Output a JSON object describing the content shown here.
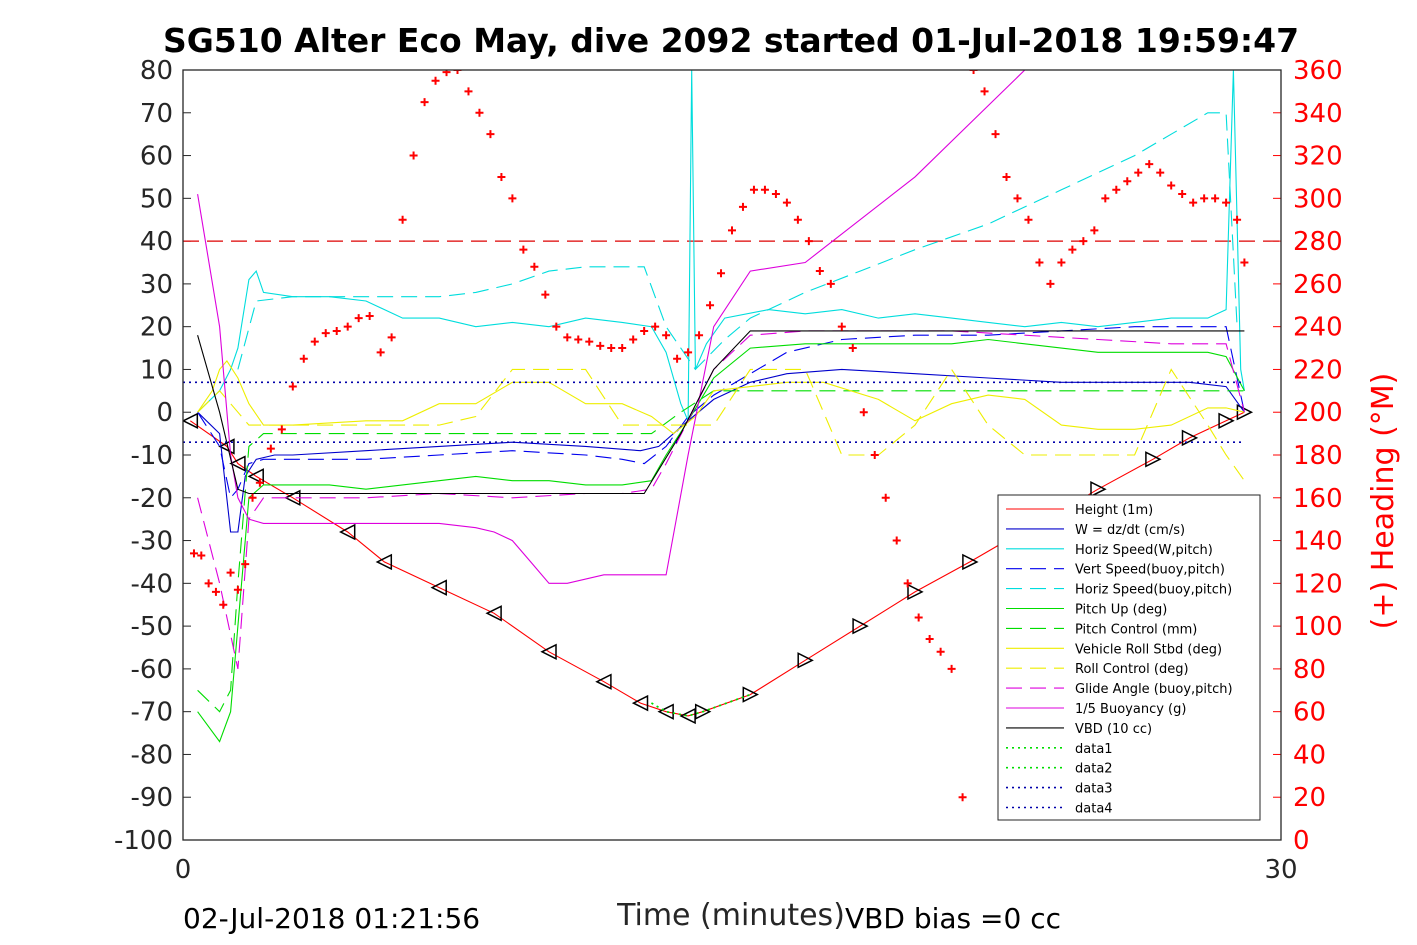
{
  "chart_data": {
    "type": "line",
    "title": "SG510 Alter Eco May, dive 2092 started 01-Jul-2018 19:59:47",
    "xlabel": "Time (minutes)",
    "ylabel_right": "(+) Heading (°M)",
    "footer_left": "02-Jul-2018 01:21:56",
    "footer_right": "VBD bias =0 cc",
    "xlim": [
      0,
      30
    ],
    "ylim": [
      -100,
      80
    ],
    "ylim_right": [
      0,
      360
    ],
    "x_ticks": [
      "0",
      "30"
    ],
    "y_ticks": [
      "80",
      "70",
      "60",
      "50",
      "40",
      "30",
      "20",
      "10",
      "0",
      "-10",
      "-20",
      "-30",
      "-40",
      "-50",
      "-60",
      "-70",
      "-80",
      "-90",
      "-100"
    ],
    "y_right_ticks": [
      "360",
      "340",
      "320",
      "300",
      "280",
      "260",
      "240",
      "220",
      "200",
      "180",
      "160",
      "140",
      "120",
      "100",
      "80",
      "60",
      "40",
      "20",
      "0"
    ],
    "grid": false,
    "legend_position": "bottom-right",
    "series": [
      {
        "name": "Height (1m)",
        "color": "#ff0000",
        "dash": "solid",
        "marker": "triangle",
        "x": [
          0.2,
          1.2,
          1.5,
          2.0,
          3.0,
          4.5,
          5.5,
          7.0,
          8.5,
          10.0,
          11.5,
          12.5,
          13.2,
          13.8,
          14.2,
          15.5,
          17.0,
          18.5,
          20.0,
          21.5,
          22.5,
          24.0,
          25.0,
          26.5,
          27.5,
          28.5,
          29.0
        ],
        "y": [
          -2,
          -8,
          -12,
          -15,
          -20,
          -28,
          -35,
          -41,
          -47,
          -56,
          -63,
          -68,
          -70,
          -71,
          -70,
          -66,
          -58,
          -50,
          -42,
          -35,
          -30,
          -23,
          -18,
          -11,
          -6,
          -2,
          0
        ]
      },
      {
        "name": "W = dz/dt (cm/s)",
        "color": "#0000cc",
        "dash": "solid",
        "x": [
          0.4,
          1.0,
          1.3,
          1.5,
          1.7,
          2.0,
          2.5,
          3.0,
          5.0,
          7.0,
          9.0,
          11.0,
          12.5,
          13.0,
          13.8,
          14.5,
          15.5,
          16.5,
          18.0,
          20.0,
          22.0,
          24.0,
          26.0,
          27.5,
          28.5,
          29.0
        ],
        "y": [
          0,
          -5,
          -28,
          -28,
          -15,
          -11,
          -10,
          -10,
          -9,
          -8,
          -7,
          -8,
          -9,
          -8,
          -2,
          3,
          7,
          9,
          10,
          9,
          8,
          7,
          7,
          7,
          6,
          0
        ]
      },
      {
        "name": "Horiz Speed(W,pitch)",
        "color": "#00dddd",
        "dash": "solid",
        "x": [
          0.4,
          1.0,
          1.3,
          1.5,
          1.8,
          2.0,
          2.2,
          3.0,
          4.0,
          5.0,
          6.0,
          7.0,
          8.0,
          9.0,
          10.0,
          11.0,
          12.0,
          12.8,
          13.2,
          13.6,
          13.8,
          13.9,
          14.0,
          14.3,
          14.8,
          16.0,
          17.0,
          18.0,
          19.0,
          20.0,
          21.0,
          22.0,
          23.0,
          24.0,
          25.0,
          26.0,
          27.0,
          28.0,
          28.5,
          28.7,
          28.9,
          29.0
        ],
        "y": [
          0,
          5,
          10,
          15,
          31,
          33,
          28,
          27,
          27,
          26,
          22,
          22,
          20,
          21,
          20,
          22,
          21,
          20,
          14,
          2,
          -2,
          80,
          10,
          16,
          22,
          24,
          23,
          24,
          22,
          23,
          22,
          21,
          20,
          21,
          20,
          21,
          22,
          22,
          24,
          80,
          10,
          5
        ]
      },
      {
        "name": "Vert Speed(buoy,pitch)",
        "color": "#0000ee",
        "dash": "dashed",
        "x": [
          0.4,
          1.0,
          1.3,
          1.5,
          1.8,
          2.2,
          3.0,
          5.0,
          7.0,
          9.0,
          11.0,
          12.0,
          12.6,
          13.2,
          13.8,
          14.5,
          15.5,
          16.5,
          18.0,
          20.0,
          22.0,
          24.0,
          26.0,
          27.5,
          28.5,
          29.0
        ],
        "y": [
          0,
          -8,
          -20,
          -18,
          -12,
          -11,
          -11,
          -11,
          -10,
          -9,
          -10,
          -11,
          -12,
          -8,
          -1,
          4,
          9,
          14,
          17,
          18,
          18,
          19,
          20,
          20,
          20,
          0
        ]
      },
      {
        "name": "Horiz Speed(buoy,pitch)",
        "color": "#00dddd",
        "dash": "dashed",
        "x": [
          1.5,
          2.0,
          3.0,
          5.0,
          7.0,
          8.0,
          9.0,
          10.0,
          11.0,
          12.0,
          12.6,
          13.2,
          14.0,
          14.8,
          15.5,
          17.0,
          18.5,
          20.0,
          22.0,
          24.0,
          26.0,
          27.0,
          28.0,
          28.5,
          28.8
        ],
        "y": [
          10,
          26,
          27,
          27,
          27,
          28,
          30,
          33,
          34,
          34,
          34,
          20,
          10,
          17,
          22,
          28,
          33,
          38,
          44,
          52,
          60,
          65,
          70,
          70,
          20
        ]
      },
      {
        "name": "Pitch Up (deg)",
        "color": "#00dd00",
        "dash": "solid",
        "x": [
          0.4,
          1.0,
          1.3,
          1.5,
          1.8,
          2.2,
          3.0,
          4.0,
          5.0,
          6.0,
          7.0,
          8.0,
          9.0,
          10.0,
          11.0,
          12.0,
          12.8,
          13.2,
          13.8,
          14.5,
          15.5,
          17.0,
          19.0,
          21.0,
          22.0,
          23.0,
          25.0,
          27.0,
          28.0,
          28.5,
          29.0
        ],
        "y": [
          -70,
          -77,
          -70,
          -50,
          -20,
          -17,
          -17,
          -17,
          -18,
          -17,
          -16,
          -15,
          -16,
          -16,
          -17,
          -17,
          -16,
          -10,
          -2,
          8,
          15,
          16,
          16,
          16,
          17,
          16,
          14,
          14,
          14,
          13,
          5
        ]
      },
      {
        "name": "Pitch Control (mm)",
        "color": "#00dd00",
        "dash": "dashed",
        "x": [
          0.4,
          1.0,
          1.3,
          1.5,
          1.8,
          2.2,
          3.0,
          7.0,
          11.0,
          12.8,
          13.6,
          14.5,
          15.5,
          20.0,
          25.0,
          28.5,
          29.0
        ],
        "y": [
          -65,
          -70,
          -65,
          -40,
          -8,
          -5,
          -5,
          -5,
          -5,
          -5,
          0,
          5,
          5,
          5,
          5,
          5,
          5
        ]
      },
      {
        "name": "Vehicle Roll Stbd (deg)",
        "color": "#eeee00",
        "dash": "solid",
        "x": [
          0.4,
          0.8,
          1.0,
          1.2,
          1.5,
          1.8,
          2.2,
          3.0,
          5.0,
          6.0,
          7.0,
          8.0,
          9.0,
          10.0,
          11.0,
          12.0,
          12.8,
          13.4,
          14.0,
          14.5,
          15.5,
          16.5,
          17.5,
          19.0,
          20.0,
          21.0,
          22.0,
          23.0,
          24.0,
          25.0,
          26.0,
          27.0,
          28.0,
          28.5,
          29.0
        ],
        "y": [
          0,
          5,
          10,
          12,
          8,
          2,
          -3,
          -3,
          -2,
          -2,
          2,
          2,
          7,
          7,
          2,
          2,
          -1,
          -5,
          -1,
          5,
          6,
          7,
          7,
          3,
          -2,
          2,
          4,
          3,
          -3,
          -4,
          -4,
          -3,
          1,
          1,
          0
        ]
      },
      {
        "name": "Roll Control (deg)",
        "color": "#eeee00",
        "dash": "dashed",
        "x": [
          0.4,
          1.0,
          1.5,
          1.8,
          2.2,
          3.0,
          5.0,
          7.0,
          8.0,
          9.0,
          10.0,
          11.0,
          12.0,
          12.8,
          13.5,
          14.0,
          14.5,
          15.5,
          17.0,
          18.0,
          19.0,
          20.0,
          21.0,
          22.0,
          23.0,
          24.0,
          25.0,
          26.0,
          27.0,
          28.0,
          28.5,
          29.0
        ],
        "y": [
          0,
          5,
          0,
          -3,
          -3,
          -3,
          -3,
          -3,
          -1,
          10,
          10,
          10,
          -3,
          -3,
          -3,
          -3,
          -3,
          10,
          10,
          -10,
          -10,
          -3,
          10,
          -3,
          -10,
          -10,
          -10,
          -10,
          10,
          -3,
          -10,
          -16
        ]
      },
      {
        "name": "Glide Angle (buoy,pitch)",
        "color": "#dd00dd",
        "dash": "dashed",
        "x": [
          0.4,
          1.0,
          1.5,
          1.8,
          2.2,
          3.0,
          5.0,
          7.0,
          9.0,
          11.0,
          12.0,
          12.8,
          13.2,
          13.8,
          14.5,
          15.5,
          17.0,
          19.0,
          21.0,
          23.0,
          25.0,
          27.0,
          28.5,
          29.0
        ],
        "y": [
          -20,
          -40,
          -60,
          -25,
          -20,
          -20,
          -20,
          -19,
          -20,
          -19,
          -19,
          -18,
          -12,
          -2,
          10,
          18,
          19,
          19,
          19,
          18,
          17,
          16,
          16,
          0
        ]
      },
      {
        "name": "1/5 Buoyancy (g)",
        "color": "#dd00dd",
        "dash": "solid",
        "x": [
          0.4,
          1.0,
          1.3,
          1.5,
          1.8,
          2.2,
          3.0,
          5.0,
          7.0,
          8.0,
          8.5,
          9.0,
          9.5,
          10.0,
          10.5,
          11.5,
          12.5,
          13.2,
          13.8,
          14.5,
          15.5,
          17.0,
          20.0,
          23.0
        ],
        "y": [
          51,
          20,
          -10,
          -20,
          -25,
          -26,
          -26,
          -26,
          -26,
          -27,
          -28,
          -30,
          -35,
          -40,
          -40,
          -38,
          -38,
          -38,
          -10,
          20,
          33,
          35,
          55,
          80
        ]
      },
      {
        "name": "VBD (10 cc)",
        "color": "#000000",
        "dash": "solid",
        "x": [
          0.4,
          1.0,
          1.5,
          1.8,
          2.2,
          3.0,
          5.0,
          8.0,
          11.0,
          12.0,
          12.6,
          13.6,
          14.5,
          15.5,
          17.0,
          20.0,
          23.0,
          26.0,
          28.5,
          29.0
        ],
        "y": [
          18,
          0,
          -18,
          -19,
          -19,
          -19,
          -19,
          -19,
          -19,
          -19,
          -19,
          -5,
          10,
          19,
          19,
          19,
          19,
          19,
          19,
          19
        ]
      },
      {
        "name": "data1",
        "color": "#00dd00",
        "dash": "dotted",
        "x": [
          12.8,
          13.2,
          13.8,
          14.2,
          15.5
        ],
        "y": [
          -68,
          -70,
          -71,
          -70,
          -66
        ]
      },
      {
        "name": "data2",
        "color": "#00dd00",
        "dash": "dotted",
        "x": [
          12.8,
          13.2,
          13.8,
          14.2,
          15.5
        ],
        "y": [
          -68,
          -70,
          -71,
          -70,
          -66
        ]
      },
      {
        "name": "data3",
        "color": "#0000aa",
        "dash": "dotted",
        "x": [
          0,
          29
        ],
        "y": [
          7,
          7
        ]
      },
      {
        "name": "data4",
        "color": "#0000aa",
        "dash": "dotted",
        "x": [
          0,
          29
        ],
        "y": [
          -7,
          -7
        ]
      }
    ],
    "reference_line": {
      "y": 40,
      "color": "#dd0000",
      "dash": "dashed"
    },
    "heading": {
      "axis": "right",
      "color": "#ff0000",
      "marker": "plus",
      "x": [
        0.3,
        0.5,
        0.7,
        0.9,
        1.1,
        1.3,
        1.5,
        1.7,
        1.9,
        2.1,
        2.4,
        2.7,
        3.0,
        3.3,
        3.6,
        3.9,
        4.2,
        4.5,
        4.8,
        5.1,
        5.4,
        5.7,
        6.0,
        6.3,
        6.6,
        6.9,
        7.2,
        7.5,
        7.8,
        8.1,
        8.4,
        8.7,
        9.0,
        9.3,
        9.6,
        9.9,
        10.2,
        10.5,
        10.8,
        11.1,
        11.4,
        11.7,
        12.0,
        12.3,
        12.6,
        12.9,
        13.2,
        13.5,
        13.8,
        14.1,
        14.4,
        14.7,
        15.0,
        15.3,
        15.6,
        15.9,
        16.2,
        16.5,
        16.8,
        17.1,
        17.4,
        17.7,
        18.0,
        18.3,
        18.6,
        18.9,
        19.2,
        19.5,
        19.8,
        20.1,
        20.4,
        20.7,
        21.0,
        21.3,
        21.6,
        21.9,
        22.2,
        22.5,
        22.8,
        23.1,
        23.4,
        23.7,
        24.0,
        24.3,
        24.6,
        24.9,
        25.2,
        25.5,
        25.8,
        26.1,
        26.4,
        26.7,
        27.0,
        27.3,
        27.6,
        27.9,
        28.2,
        28.5,
        28.8,
        29.0
      ],
      "y": [
        134,
        133,
        120,
        116,
        110,
        125,
        117,
        129,
        160,
        167,
        183,
        192,
        212,
        225,
        233,
        237,
        238,
        240,
        244,
        245,
        228,
        235,
        290,
        320,
        345,
        355,
        359,
        360,
        350,
        340,
        330,
        310,
        300,
        276,
        268,
        255,
        240,
        235,
        234,
        233,
        231,
        230,
        230,
        234,
        238,
        240,
        236,
        225,
        228,
        236,
        250,
        265,
        285,
        296,
        304,
        304,
        302,
        298,
        290,
        280,
        266,
        260,
        240,
        230,
        200,
        180,
        160,
        140,
        120,
        104,
        94,
        88,
        80,
        20,
        360,
        350,
        330,
        310,
        300,
        290,
        270,
        260,
        270,
        276,
        280,
        285,
        300,
        304,
        308,
        312,
        316,
        312,
        306,
        302,
        298,
        300,
        300,
        298,
        290,
        270
      ]
    }
  }
}
